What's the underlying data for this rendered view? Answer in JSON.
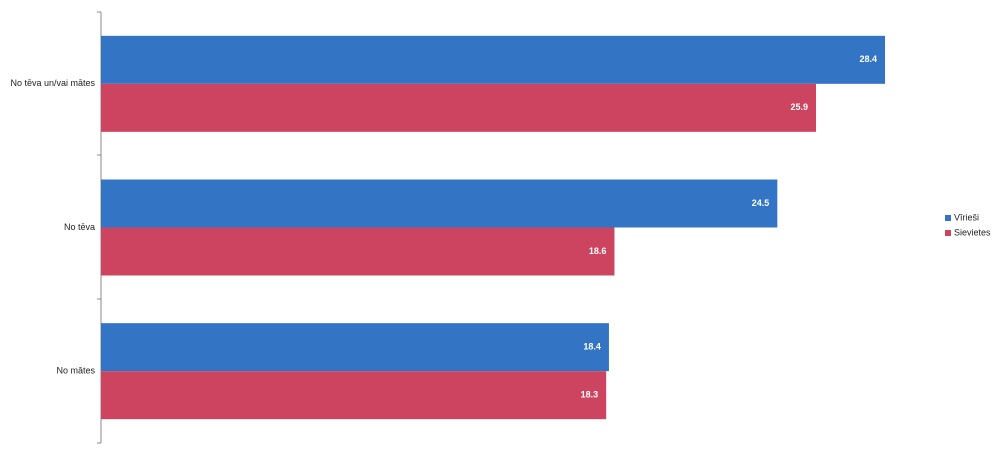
{
  "chart_data": {
    "type": "bar",
    "orientation": "horizontal",
    "categories": [
      "No tēva un/vai mātes",
      "No tēva",
      "No mātes"
    ],
    "series": [
      {
        "name": "Vīrieši",
        "color": "#3375c4",
        "values": [
          28.4,
          24.5,
          18.4
        ]
      },
      {
        "name": "Sievietes",
        "color": "#cc4460",
        "values": [
          25.9,
          18.6,
          18.3
        ]
      }
    ],
    "legend": "right"
  }
}
